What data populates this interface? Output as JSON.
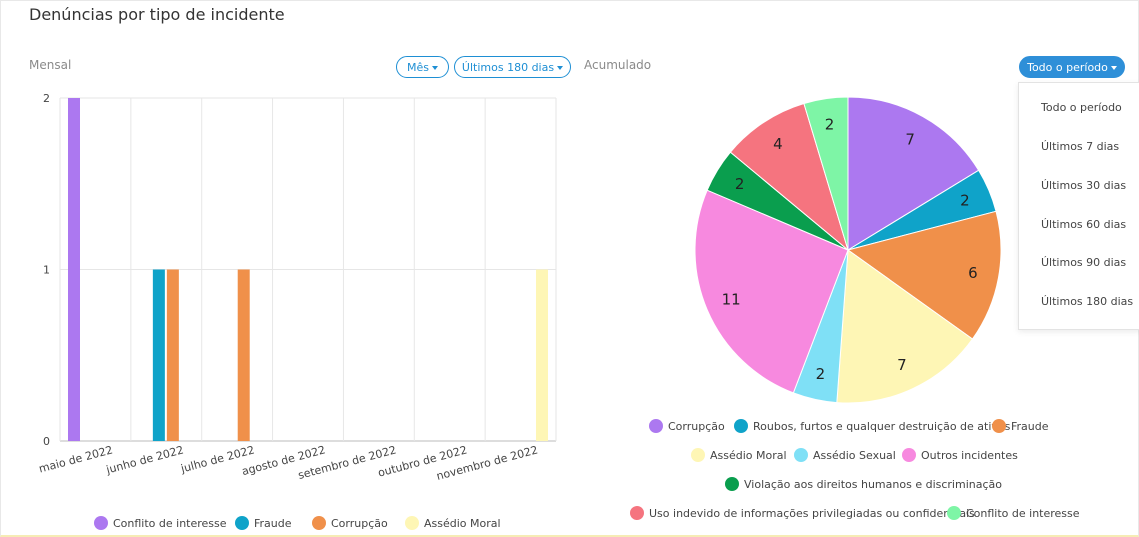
{
  "header": {
    "title": "Denúncias por tipo de incidente"
  },
  "monthly": {
    "label": "Mensal",
    "period_button": "Mês",
    "range_button": "Últimos 180 dias"
  },
  "cumulative": {
    "label": "Acumulado",
    "range_button": "Todo o período",
    "dropdown_options": [
      "Todo o período",
      "Últimos 7 dias",
      "Últimos 30 dias",
      "Últimos 60 dias",
      "Últimos 90 dias",
      "Últimos 180 dias"
    ]
  },
  "colors": {
    "Corrupção": "#f0904a",
    "Roubos": "#0fa3c9",
    "Fraude": "#0fa3c9",
    "Conflito": "#ac78f0"
  },
  "chart_data": [
    {
      "type": "bar",
      "categories": [
        "maio de 2022",
        "junho de 2022",
        "julho de 2022",
        "agosto de 2022",
        "setembro de 2022",
        "outubro de 2022",
        "novembro de 2022"
      ],
      "yticks": [
        "0",
        "1",
        "2"
      ],
      "ylim": [
        0,
        2
      ],
      "grid": true,
      "legend_position": "bottom",
      "series": [
        {
          "name": "Conflito de interesse",
          "color": "#ac78f0",
          "values": [
            2,
            0,
            0,
            0,
            0,
            0,
            0
          ]
        },
        {
          "name": "Fraude",
          "color": "#0fa3c9",
          "values": [
            0,
            1,
            0,
            0,
            0,
            0,
            0
          ]
        },
        {
          "name": "Corrupção",
          "color": "#f0904a",
          "values": [
            0,
            1,
            1,
            0,
            0,
            0,
            0
          ]
        },
        {
          "name": "Assédio Moral",
          "color": "#fef6b5",
          "values": [
            0,
            0,
            0,
            0,
            0,
            0,
            1
          ]
        }
      ]
    },
    {
      "type": "pie",
      "legend_position": "bottom",
      "slices": [
        {
          "name": "Corrupção",
          "value": 7,
          "color": "#ac78f0"
        },
        {
          "name": "Roubos, furtos e qualquer destruição de ativos",
          "value": 2,
          "color": "#0fa3c9"
        },
        {
          "name": "Fraude",
          "value": 6,
          "color": "#f0904a"
        },
        {
          "name": "Assédio Moral",
          "value": 7,
          "color": "#fef6b5"
        },
        {
          "name": "Assédio Sexual",
          "value": 2,
          "color": "#7fe0f6"
        },
        {
          "name": "Outros incidentes",
          "value": 11,
          "color": "#f789df"
        },
        {
          "name": "Violação aos direitos humanos e discriminação",
          "value": 2,
          "color": "#0a9e4e"
        },
        {
          "name": "Uso indevido de informações privilegiadas ou confidenciais",
          "value": 4,
          "color": "#f5747f"
        },
        {
          "name": "Conflito de interesse",
          "value": 2,
          "color": "#7ef5a6"
        }
      ]
    }
  ]
}
